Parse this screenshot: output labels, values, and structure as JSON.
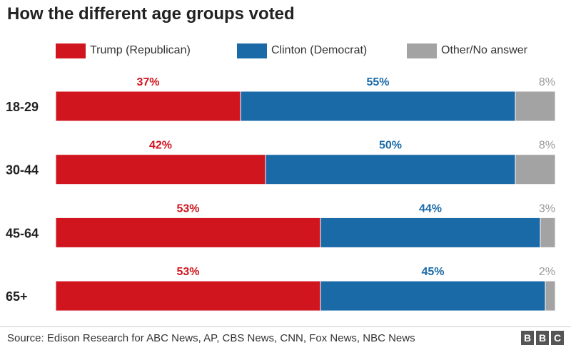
{
  "chart_data": {
    "type": "bar",
    "orientation": "horizontal",
    "stacked": true,
    "title": "How the different age groups voted",
    "categories": [
      "18-29",
      "30-44",
      "45-64",
      "65+"
    ],
    "series": [
      {
        "name": "Trump (Republican)",
        "color": "#d0151f",
        "values": [
          37,
          42,
          53,
          53
        ]
      },
      {
        "name": "Clinton (Democrat)",
        "color": "#1b6aa8",
        "values": [
          55,
          50,
          44,
          45
        ]
      },
      {
        "name": "Other/No answer",
        "color": "#a3a3a3",
        "values": [
          8,
          8,
          3,
          2
        ]
      }
    ],
    "label_colors": [
      "#d0151f",
      "#1b6aa8",
      "#9a9a9a"
    ],
    "value_suffix": "%",
    "xlim": [
      0,
      100
    ],
    "legend_position": "top",
    "source": "Source: Edison Research for ABC News, AP, CBS News, CNN, Fox News, NBC News"
  },
  "branding": [
    "B",
    "B",
    "C"
  ]
}
